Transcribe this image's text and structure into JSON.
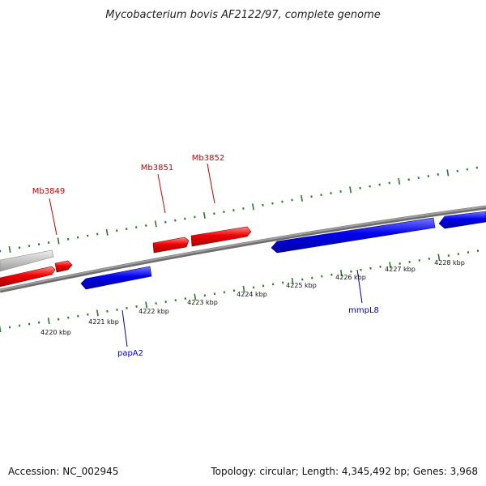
{
  "title": "Mycobacterium bovis AF2122/97, complete genome",
  "footer": {
    "accession": "Accession: NC_002945",
    "summary": "Topology: circular; Length: 4,345,492 bp; Genes: 3,968"
  },
  "colors": {
    "forward_gene": "#ee0000",
    "reverse_gene": "#0000dd",
    "tick": "#2a7a2a",
    "backbone": "#8a8a8a",
    "gray_feature": "#c8c8c8",
    "forward_label": "#cc0000",
    "reverse_label": "#0000bb"
  },
  "diagram": {
    "scale_labels": [
      "4220 kbp",
      "4221 kbp",
      "4222 kbp",
      "4223 kbp",
      "4224 kbp",
      "4225 kbp",
      "4226 kbp",
      "4227 kbp",
      "4228 kbp"
    ],
    "forward_labels": [
      "Mb3849",
      "Mb3851",
      "Mb3852"
    ],
    "reverse_labels": [
      "papA2",
      "mmpL8"
    ]
  }
}
